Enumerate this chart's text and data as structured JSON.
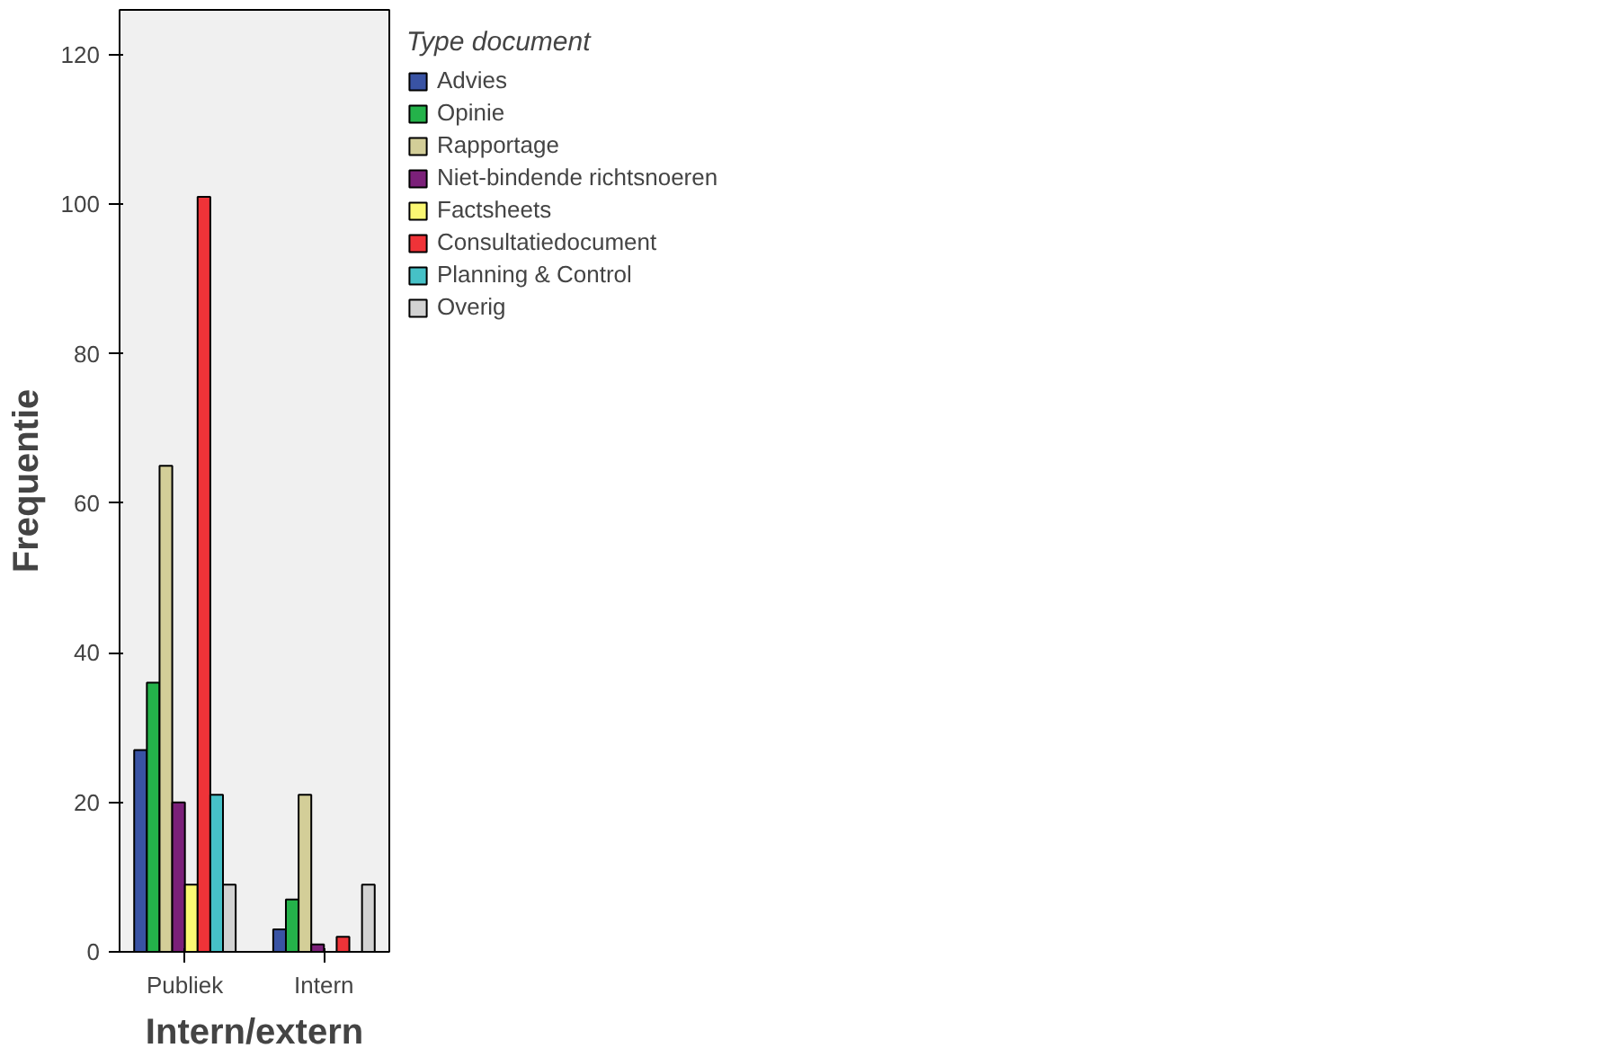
{
  "chart_data": {
    "type": "bar",
    "xlabel": "Intern/extern",
    "ylabel": "Frequentie",
    "legend_title": "Type document",
    "categories": [
      "Publiek",
      "Intern"
    ],
    "series": [
      {
        "name": "Advies",
        "color": "#3953a4",
        "values": [
          27,
          3
        ]
      },
      {
        "name": "Opinie",
        "color": "#24b24a",
        "values": [
          36,
          7
        ]
      },
      {
        "name": "Rapportage",
        "color": "#d3ce98",
        "values": [
          65,
          21
        ]
      },
      {
        "name": "Niet-bindende richtsnoeren",
        "color": "#7b2079",
        "values": [
          20,
          1
        ]
      },
      {
        "name": "Factsheets",
        "color": "#fbf873",
        "values": [
          9,
          0
        ]
      },
      {
        "name": "Consultatiedocument",
        "color": "#ef3338",
        "values": [
          101,
          2
        ]
      },
      {
        "name": "Planning & Control",
        "color": "#46c1c7",
        "values": [
          21,
          0
        ]
      },
      {
        "name": "Overig",
        "color": "#d2d2d2",
        "values": [
          9,
          9
        ]
      }
    ],
    "ylim": [
      0,
      126
    ],
    "yticks": [
      0,
      20,
      40,
      60,
      80,
      100,
      120
    ],
    "grid": false,
    "legend": "right"
  }
}
